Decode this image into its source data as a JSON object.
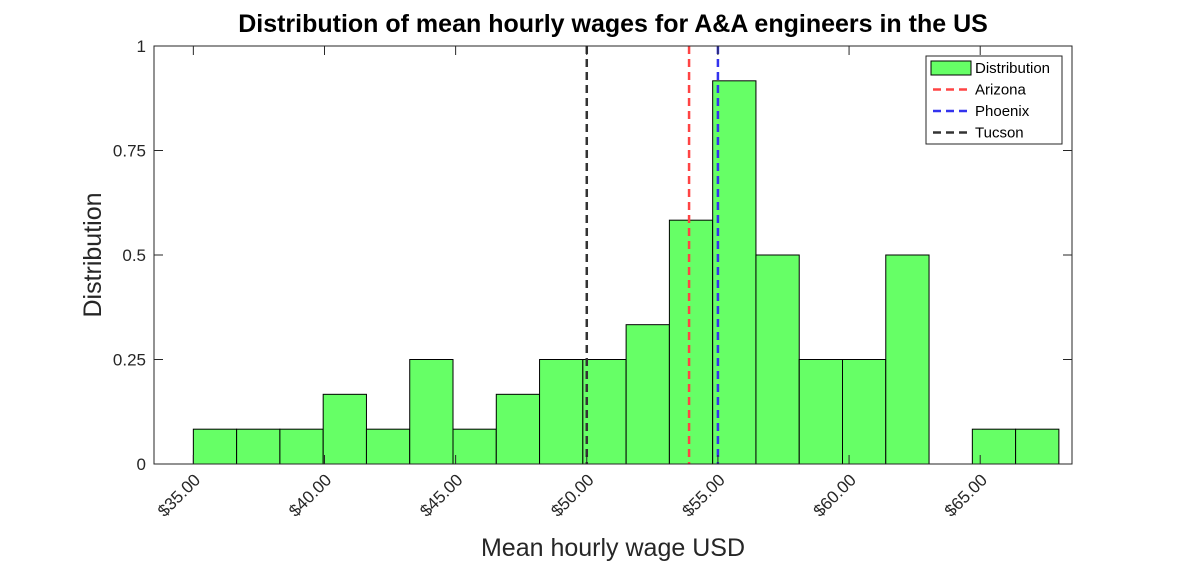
{
  "chart_data": {
    "type": "bar",
    "title": "Distribution of mean hourly wages for A&A engineers in the US",
    "xlabel": "Mean hourly wage USD",
    "ylabel": "Distribution",
    "xlim": [
      33.5,
      68.5
    ],
    "ylim": [
      0,
      1
    ],
    "x_ticks": [
      35,
      40,
      45,
      50,
      55,
      60,
      65
    ],
    "x_tick_labels": [
      "$35.00",
      "$40.00",
      "$45.00",
      "$50.00",
      "$55.00",
      "$60.00",
      "$65.00"
    ],
    "y_ticks": [
      0,
      0.25,
      0.5,
      0.75,
      1
    ],
    "y_tick_labels": [
      "0",
      "0.25",
      "0.5",
      "0.75",
      "1"
    ],
    "bin_edges": [
      35.0,
      36.65,
      38.3,
      39.95,
      41.6,
      43.25,
      44.9,
      46.55,
      48.2,
      49.85,
      51.5,
      53.15,
      54.8,
      56.45,
      58.1,
      59.75,
      61.4,
      63.05,
      64.7,
      66.35,
      68.0
    ],
    "values": [
      0.0833,
      0.0833,
      0.0833,
      0.1667,
      0.0833,
      0.25,
      0.0833,
      0.1667,
      0.25,
      0.25,
      0.3333,
      0.5833,
      0.9167,
      0.5,
      0.25,
      0.25,
      0.5,
      0,
      0.0833,
      0.0833
    ],
    "bar_color": "#66ff66",
    "reference_lines": [
      {
        "name": "Arizona",
        "x": 53.9,
        "color": "#ff4444"
      },
      {
        "name": "Phoenix",
        "x": 55.0,
        "color": "#3333ee"
      },
      {
        "name": "Tucson",
        "x": 50.0,
        "color": "#333333"
      }
    ],
    "legend": {
      "placement": "top-right",
      "entries": [
        {
          "label": "Distribution",
          "kind": "patch",
          "color": "#66ff66"
        },
        {
          "label": "Arizona",
          "kind": "dashed-line",
          "color": "#ff4444"
        },
        {
          "label": "Phoenix",
          "kind": "dashed-line",
          "color": "#3333ee"
        },
        {
          "label": "Tucson",
          "kind": "dashed-line",
          "color": "#333333"
        }
      ]
    },
    "grid": false
  }
}
